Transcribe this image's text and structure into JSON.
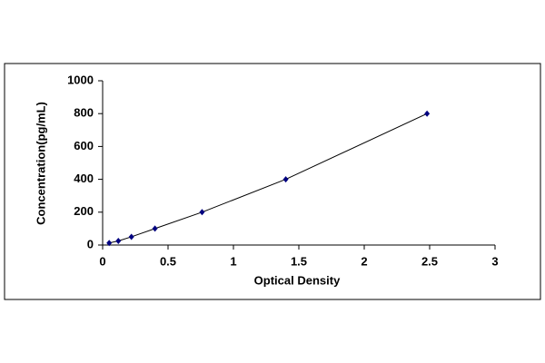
{
  "chart_data": {
    "type": "scatter",
    "x_label": "Optical Density",
    "y_label": "Concentration(pg/mL)",
    "series": [
      {
        "color": "#000080",
        "x": [
          0.05,
          0.12,
          0.22,
          0.4,
          0.76,
          1.4,
          2.48
        ],
        "values": [
          12.5,
          25,
          50,
          100,
          200,
          400,
          800
        ]
      }
    ],
    "xlim": [
      0,
      3
    ],
    "xticks": [
      0,
      0.5,
      1,
      1.5,
      2,
      2.5,
      3
    ],
    "ylim": [
      0,
      1000
    ],
    "yticks": [
      0,
      200,
      400,
      600,
      800,
      1000
    ],
    "grid": false,
    "line": true
  }
}
